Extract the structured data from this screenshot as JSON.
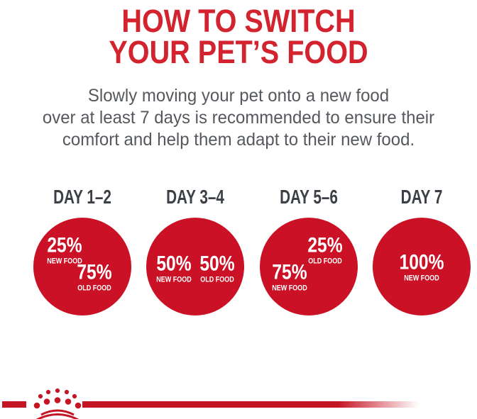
{
  "title": {
    "line1": "HOW TO SWITCH",
    "line2": "YOUR PET’S FOOD"
  },
  "subtitle": {
    "line1": "Slowly moving your pet onto a new food",
    "line2": "over at least 7 days is recommended to ensure their",
    "line3": "comfort and help them adapt to their new food."
  },
  "colors": {
    "title_red": "#D2232F",
    "pie_red": "#CB1126",
    "pie_gray": "#B1B3B6",
    "heading_dark": "#3B4046",
    "subtitle_gray": "#55585C",
    "logo_red": "#C41524",
    "label_white": "#FFFFFF"
  },
  "chart_data": {
    "type": "pie",
    "unit": "percent",
    "title": "HOW TO SWITCH YOUR PET’S FOOD",
    "legend": [
      "NEW FOOD",
      "OLD FOOD"
    ],
    "pies": [
      {
        "day_label": "DAY 1–2",
        "slices": [
          {
            "value": 25,
            "label": "NEW FOOD",
            "color_key": "new",
            "start_deg": 270,
            "end_deg": 360
          },
          {
            "value": 75,
            "label": "OLD FOOD",
            "color_key": "old",
            "start_deg": 0,
            "end_deg": 270
          }
        ]
      },
      {
        "day_label": "DAY 3–4",
        "slices": [
          {
            "value": 50,
            "label": "NEW FOOD",
            "color_key": "new",
            "start_deg": 180,
            "end_deg": 360
          },
          {
            "value": 50,
            "label": "OLD FOOD",
            "color_key": "old",
            "start_deg": 0,
            "end_deg": 180
          }
        ]
      },
      {
        "day_label": "DAY 5–6",
        "slices": [
          {
            "value": 75,
            "label": "NEW FOOD",
            "color_key": "new",
            "start_deg": 90,
            "end_deg": 360
          },
          {
            "value": 25,
            "label": "OLD FOOD",
            "color_key": "old",
            "start_deg": 0,
            "end_deg": 90
          }
        ]
      },
      {
        "day_label": "DAY 7",
        "slices": [
          {
            "value": 100,
            "label": "NEW FOOD",
            "color_key": "new",
            "start_deg": 0,
            "end_deg": 360
          }
        ]
      }
    ]
  },
  "logo": {
    "name": "royal-canin-crown"
  }
}
